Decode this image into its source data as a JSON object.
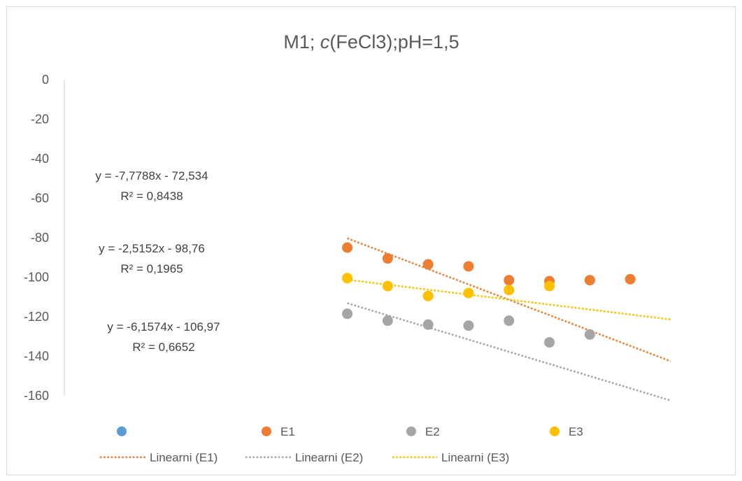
{
  "chart_data": {
    "type": "scatter",
    "title_prefix": "M1; ",
    "title_italic": "c",
    "title_suffix": "(FeCl3);pH=1,5",
    "ylim": [
      -160,
      0
    ],
    "yticks": [
      "0",
      "-20",
      "-40",
      "-60",
      "-80",
      "-100",
      "-120",
      "-140",
      "-160"
    ],
    "xlim": [
      0,
      15
    ],
    "grid": false,
    "series": [
      {
        "name": "",
        "color": "#5b9bd5",
        "x": [],
        "y": []
      },
      {
        "name": "E1",
        "color": "#ed7d31",
        "x": [
          7,
          8,
          9,
          10,
          11,
          12,
          13,
          14
        ],
        "y": [
          -85,
          -90.5,
          -93.5,
          -94.5,
          -101.5,
          -102,
          -101.5,
          -101
        ]
      },
      {
        "name": "E2",
        "color": "#a5a5a5",
        "x": [
          7,
          8,
          9,
          10,
          11,
          12,
          13
        ],
        "y": [
          -118.5,
          -122,
          -124,
          -124.5,
          -122,
          -133,
          -129
        ]
      },
      {
        "name": "E3",
        "color": "#ffc000",
        "x": [
          7,
          8,
          9,
          10,
          11,
          12
        ],
        "y": [
          -100.5,
          -104.5,
          -109.5,
          -108,
          -106.5,
          -104.5
        ]
      }
    ],
    "trendlines": [
      {
        "name": "Linearni (E1)",
        "color": "#ed7d31",
        "slope": -7.7788,
        "intercept": -72.534,
        "equation": "y = -7,7788x - 72,534",
        "r2": "R² = 0,8438"
      },
      {
        "name": "Linearni (E2)",
        "color": "#a5a5a5",
        "slope": -6.1574,
        "intercept": -106.97,
        "equation": "y = -6,1574x - 106,97",
        "r2": "R² = 0,6652"
      },
      {
        "name": "Linearni (E3)",
        "color": "#ffc000",
        "slope": -2.5152,
        "intercept": -98.76,
        "equation": "y = -2,5152x - 98,76",
        "r2": "R² = 0,1965"
      }
    ],
    "legend_position": "bottom"
  }
}
